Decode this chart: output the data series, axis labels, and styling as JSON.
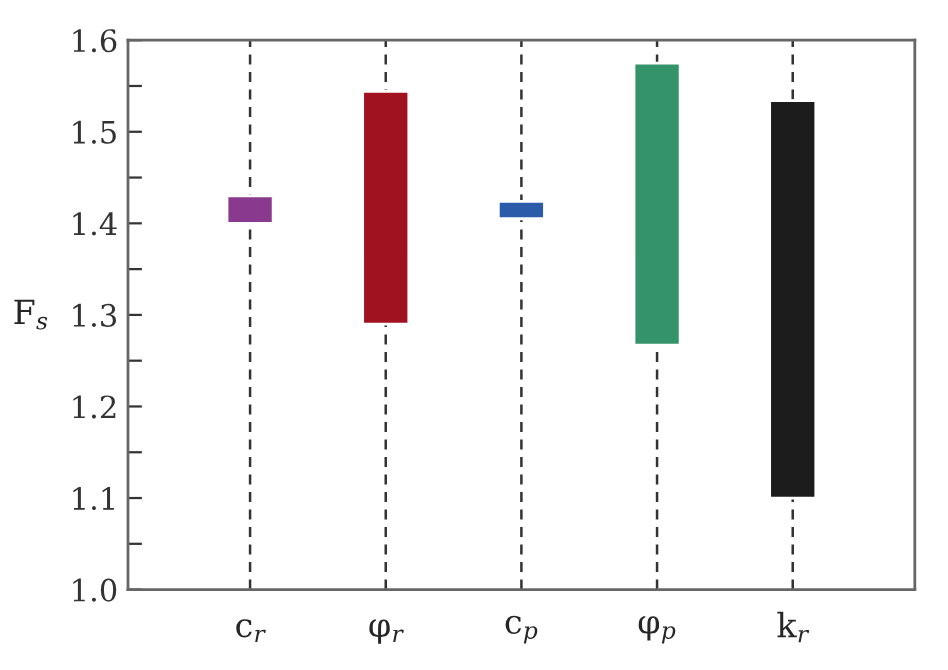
{
  "chart_data": {
    "type": "bar",
    "ylabel": "F$_{s}$",
    "categories": [
      "c$_{r}$",
      "φ$_{r}$",
      "c$_{p}$",
      "φ$_{p}$",
      "k$_{r}$"
    ],
    "base": [
      1.4,
      1.29,
      1.405,
      1.267,
      1.1
    ],
    "values": [
      0.03,
      0.254,
      0.019,
      0.308,
      0.434
    ],
    "colors": [
      "#8a3a8e",
      "#a0121f",
      "#2a5caa",
      "#35936a",
      "#1c1c1c"
    ],
    "ylim": [
      1.0,
      1.6
    ],
    "yticks": [
      {
        "value": 1.0,
        "label": "1.0"
      },
      {
        "value": 1.05,
        "label": null
      },
      {
        "value": 1.1,
        "label": "1.1"
      },
      {
        "value": 1.15,
        "label": null
      },
      {
        "value": 1.2,
        "label": "1.2"
      },
      {
        "value": 1.25,
        "label": null
      },
      {
        "value": 1.3,
        "label": "1.3"
      },
      {
        "value": 1.35,
        "label": null
      },
      {
        "value": 1.4,
        "label": "1.4"
      },
      {
        "value": 1.45,
        "label": null
      },
      {
        "value": 1.5,
        "label": "1.5"
      },
      {
        "value": 1.55,
        "label": null
      },
      {
        "value": 1.6,
        "label": "1.6"
      }
    ],
    "grid": "x",
    "line_style": "dashed"
  }
}
